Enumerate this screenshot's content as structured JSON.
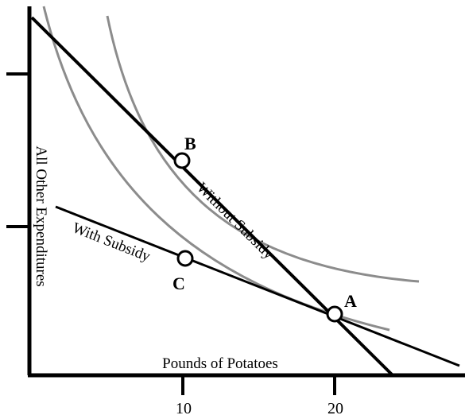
{
  "diagram": {
    "x_axis": {
      "label": "Pounds of Potatoes",
      "ticks": [
        {
          "value": 10,
          "label": "10"
        },
        {
          "value": 20,
          "label": "20"
        }
      ]
    },
    "y_axis": {
      "label": "All Other Expenditures",
      "tick_count": 2
    },
    "budget_lines": [
      {
        "label": "Without Subsidy"
      },
      {
        "label": "With Subsidy"
      }
    ],
    "indifference_curves": 2,
    "points": [
      {
        "label": "A",
        "x": 20
      },
      {
        "label": "B",
        "x": 10
      },
      {
        "label": "C",
        "x": 10
      }
    ],
    "colors": {
      "axes": "#000000",
      "budget_lines": "#000000",
      "indifference_curves": "#8c8c8c",
      "point_fill": "#ffffff"
    }
  }
}
